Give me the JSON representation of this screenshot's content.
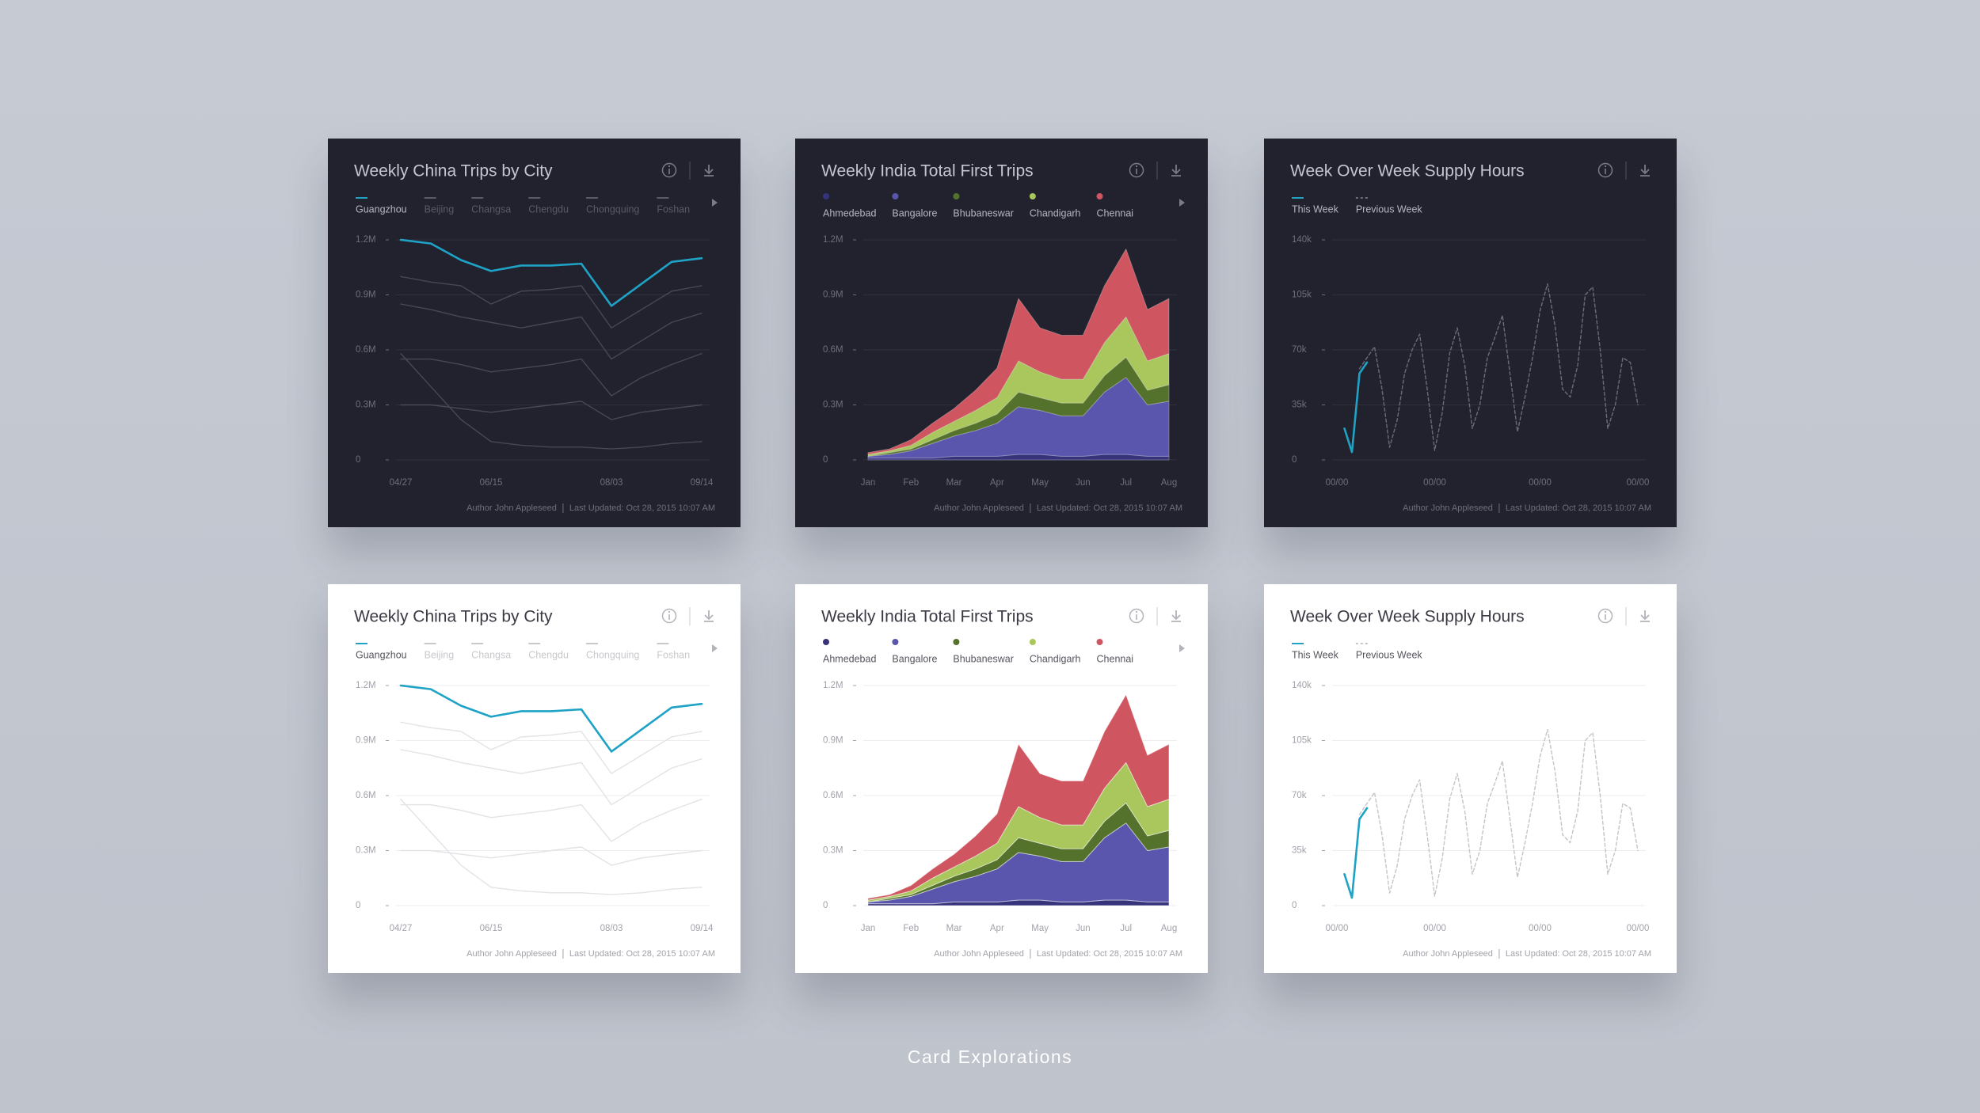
{
  "caption": "Card Explorations",
  "chart_data": [
    {
      "type": "line",
      "theme": "dark",
      "title": "Weekly China Trips by City",
      "categories": [
        "04/27",
        null,
        null,
        "06/15",
        null,
        null,
        null,
        "08/03",
        null,
        null,
        "09/14"
      ],
      "ylim": [
        0,
        1200000
      ],
      "yticks": [
        0,
        {
          "value": 300000,
          "label": "0.3M"
        },
        {
          "value": 600000,
          "label": "0.6M"
        },
        {
          "value": 900000,
          "label": "0.9M"
        },
        {
          "value": 1200000,
          "label": "1.2M"
        }
      ],
      "grid": true,
      "series": [
        {
          "name": "Guangzhou",
          "color": "#1ea3c6",
          "values": [
            1200000,
            1180000,
            1090000,
            1030000,
            1060000,
            1060000,
            1070000,
            840000,
            960000,
            1080000,
            1100000
          ]
        },
        {
          "name": "Beijing",
          "color": "#474855",
          "values": [
            1000000,
            970000,
            950000,
            850000,
            920000,
            930000,
            950000,
            720000,
            820000,
            920000,
            950000
          ]
        },
        {
          "name": "Changsa",
          "color": "#474855",
          "values": [
            850000,
            820000,
            780000,
            750000,
            720000,
            750000,
            780000,
            550000,
            650000,
            750000,
            800000
          ]
        },
        {
          "name": "Chengdu",
          "color": "#474855",
          "values": [
            580000,
            400000,
            220000,
            100000,
            80000,
            70000,
            70000,
            60000,
            70000,
            90000,
            100000
          ]
        },
        {
          "name": "Chongquing",
          "color": "#474855",
          "values": [
            550000,
            550000,
            520000,
            480000,
            500000,
            520000,
            550000,
            350000,
            450000,
            520000,
            580000
          ]
        },
        {
          "name": "Foshan",
          "color": "#474855",
          "values": [
            300000,
            300000,
            280000,
            260000,
            280000,
            300000,
            320000,
            220000,
            260000,
            280000,
            300000
          ]
        }
      ],
      "footer_author": "Author John Appleseed",
      "footer_updated": "Last Updated: Oct 28, 2015 10:07 AM"
    },
    {
      "type": "stacked-area",
      "theme": "dark",
      "title": "Weekly India Total First Trips",
      "categories": [
        "Jan",
        null,
        "Feb",
        null,
        "Mar",
        null,
        "Apr",
        null,
        "May",
        null,
        "Jun",
        null,
        "Jul",
        null,
        "Aug"
      ],
      "ylim": [
        0,
        1200000
      ],
      "yticks": [
        0,
        {
          "value": 300000,
          "label": "0.3M"
        },
        {
          "value": 600000,
          "label": "0.6M"
        },
        {
          "value": 900000,
          "label": "0.9M"
        },
        {
          "value": 1200000,
          "label": "1.2M"
        }
      ],
      "grid": true,
      "series": [
        {
          "name": "Ahmedebad",
          "color": "#37337a",
          "values": [
            10000,
            10000,
            10000,
            10000,
            20000,
            20000,
            20000,
            30000,
            30000,
            20000,
            20000,
            30000,
            30000,
            20000,
            20000
          ]
        },
        {
          "name": "Bangalore",
          "color": "#5a56ad",
          "values": [
            10000,
            20000,
            40000,
            80000,
            110000,
            140000,
            180000,
            260000,
            240000,
            220000,
            220000,
            340000,
            420000,
            280000,
            300000
          ]
        },
        {
          "name": "Bhubaneswar",
          "color": "#55722c",
          "values": [
            0,
            10000,
            10000,
            20000,
            30000,
            40000,
            50000,
            80000,
            70000,
            70000,
            70000,
            90000,
            110000,
            80000,
            90000
          ]
        },
        {
          "name": "Chandigarh",
          "color": "#a9c75c",
          "values": [
            10000,
            10000,
            20000,
            40000,
            50000,
            70000,
            90000,
            170000,
            140000,
            130000,
            130000,
            180000,
            220000,
            160000,
            170000
          ]
        },
        {
          "name": "Chennai",
          "color": "#cf5560",
          "values": [
            10000,
            10000,
            30000,
            50000,
            70000,
            110000,
            160000,
            340000,
            240000,
            240000,
            240000,
            310000,
            370000,
            280000,
            300000
          ]
        }
      ],
      "footer_author": "Author John Appleseed",
      "footer_updated": "Last Updated: Oct 28, 2015 10:07 AM"
    },
    {
      "type": "line",
      "theme": "dark",
      "title": "Week Over Week Supply Hours",
      "categories": [
        "00/00",
        null,
        null,
        null,
        null,
        null,
        null,
        null,
        null,
        null,
        null,
        null,
        null,
        "00/00",
        null,
        null,
        null,
        null,
        null,
        null,
        null,
        null,
        null,
        null,
        null,
        null,
        null,
        "00/00",
        null,
        null,
        null,
        null,
        null,
        null,
        null,
        null,
        null,
        null,
        null,
        null,
        "00/00"
      ],
      "ylim": [
        0,
        140000
      ],
      "yticks": [
        0,
        {
          "value": 35000,
          "label": "35k"
        },
        {
          "value": 70000,
          "label": "70k"
        },
        {
          "value": 105000,
          "label": "105k"
        },
        {
          "value": 140000,
          "label": "140k"
        }
      ],
      "grid": true,
      "series": [
        {
          "name": "This Week",
          "color": "#1ea3c6",
          "values": [
            null,
            20000,
            5000,
            55000,
            62000,
            null,
            null,
            null,
            null,
            null,
            null,
            null,
            null,
            null,
            null,
            null,
            null,
            null,
            null,
            null,
            null,
            null,
            null,
            null,
            null,
            null,
            null,
            null,
            null,
            null,
            null,
            null,
            null,
            null,
            null,
            null,
            null,
            null,
            null,
            null,
            null
          ]
        },
        {
          "name": "Previous Week",
          "color": "#6b6c78",
          "dashed": true,
          "values": [
            null,
            null,
            null,
            58000,
            65000,
            72000,
            45000,
            8000,
            25000,
            55000,
            70000,
            80000,
            45000,
            6000,
            30000,
            68000,
            84000,
            60000,
            20000,
            35000,
            65000,
            78000,
            92000,
            55000,
            18000,
            40000,
            65000,
            95000,
            112000,
            85000,
            45000,
            40000,
            60000,
            105000,
            110000,
            70000,
            20000,
            35000,
            65000,
            62000,
            35000
          ]
        }
      ],
      "footer_author": "Author John Appleseed",
      "footer_updated": "Last Updated: Oct 28, 2015 10:07 AM"
    },
    {
      "type": "line",
      "theme": "light",
      "title": "Weekly China Trips by City",
      "categories": [
        "04/27",
        null,
        null,
        "06/15",
        null,
        null,
        null,
        "08/03",
        null,
        null,
        "09/14"
      ],
      "ylim": [
        0,
        1200000
      ],
      "yticks": [
        0,
        {
          "value": 300000,
          "label": "0.3M"
        },
        {
          "value": 600000,
          "label": "0.6M"
        },
        {
          "value": 900000,
          "label": "0.9M"
        },
        {
          "value": 1200000,
          "label": "1.2M"
        }
      ],
      "grid": true,
      "series": [
        {
          "name": "Guangzhou",
          "color": "#1ea3c6",
          "values": [
            1200000,
            1180000,
            1090000,
            1030000,
            1060000,
            1060000,
            1070000,
            840000,
            960000,
            1080000,
            1100000
          ]
        },
        {
          "name": "Beijing",
          "color": "#e3e3e7",
          "values": [
            1000000,
            970000,
            950000,
            850000,
            920000,
            930000,
            950000,
            720000,
            820000,
            920000,
            950000
          ]
        },
        {
          "name": "Changsa",
          "color": "#e3e3e7",
          "values": [
            850000,
            820000,
            780000,
            750000,
            720000,
            750000,
            780000,
            550000,
            650000,
            750000,
            800000
          ]
        },
        {
          "name": "Chengdu",
          "color": "#e3e3e7",
          "values": [
            580000,
            400000,
            220000,
            100000,
            80000,
            70000,
            70000,
            60000,
            70000,
            90000,
            100000
          ]
        },
        {
          "name": "Chongquing",
          "color": "#e3e3e7",
          "values": [
            550000,
            550000,
            520000,
            480000,
            500000,
            520000,
            550000,
            350000,
            450000,
            520000,
            580000
          ]
        },
        {
          "name": "Foshan",
          "color": "#e3e3e7",
          "values": [
            300000,
            300000,
            280000,
            260000,
            280000,
            300000,
            320000,
            220000,
            260000,
            280000,
            300000
          ]
        }
      ],
      "footer_author": "Author John Appleseed",
      "footer_updated": "Last Updated: Oct 28, 2015 10:07 AM"
    },
    {
      "type": "stacked-area",
      "theme": "light",
      "title": "Weekly India Total First Trips",
      "categories": [
        "Jan",
        null,
        "Feb",
        null,
        "Mar",
        null,
        "Apr",
        null,
        "May",
        null,
        "Jun",
        null,
        "Jul",
        null,
        "Aug"
      ],
      "ylim": [
        0,
        1200000
      ],
      "yticks": [
        0,
        {
          "value": 300000,
          "label": "0.3M"
        },
        {
          "value": 600000,
          "label": "0.6M"
        },
        {
          "value": 900000,
          "label": "0.9M"
        },
        {
          "value": 1200000,
          "label": "1.2M"
        }
      ],
      "grid": true,
      "series": [
        {
          "name": "Ahmedebad",
          "color": "#37337a",
          "values": [
            10000,
            10000,
            10000,
            10000,
            20000,
            20000,
            20000,
            30000,
            30000,
            20000,
            20000,
            30000,
            30000,
            20000,
            20000
          ]
        },
        {
          "name": "Bangalore",
          "color": "#5a56ad",
          "values": [
            10000,
            20000,
            40000,
            80000,
            110000,
            140000,
            180000,
            260000,
            240000,
            220000,
            220000,
            340000,
            420000,
            280000,
            300000
          ]
        },
        {
          "name": "Bhubaneswar",
          "color": "#55722c",
          "values": [
            0,
            10000,
            10000,
            20000,
            30000,
            40000,
            50000,
            80000,
            70000,
            70000,
            70000,
            90000,
            110000,
            80000,
            90000
          ]
        },
        {
          "name": "Chandigarh",
          "color": "#a9c75c",
          "values": [
            10000,
            10000,
            20000,
            40000,
            50000,
            70000,
            90000,
            170000,
            140000,
            130000,
            130000,
            180000,
            220000,
            160000,
            170000
          ]
        },
        {
          "name": "Chennai",
          "color": "#cf5560",
          "values": [
            10000,
            10000,
            30000,
            50000,
            70000,
            110000,
            160000,
            340000,
            240000,
            240000,
            240000,
            310000,
            370000,
            280000,
            300000
          ]
        }
      ],
      "footer_author": "Author John Appleseed",
      "footer_updated": "Last Updated: Oct 28, 2015 10:07 AM"
    },
    {
      "type": "line",
      "theme": "light",
      "title": "Week Over Week Supply Hours",
      "categories": [
        "00/00",
        null,
        null,
        null,
        null,
        null,
        null,
        null,
        null,
        null,
        null,
        null,
        null,
        "00/00",
        null,
        null,
        null,
        null,
        null,
        null,
        null,
        null,
        null,
        null,
        null,
        null,
        null,
        "00/00",
        null,
        null,
        null,
        null,
        null,
        null,
        null,
        null,
        null,
        null,
        null,
        null,
        "00/00"
      ],
      "ylim": [
        0,
        140000
      ],
      "yticks": [
        0,
        {
          "value": 35000,
          "label": "35k"
        },
        {
          "value": 70000,
          "label": "70k"
        },
        {
          "value": 105000,
          "label": "105k"
        },
        {
          "value": 140000,
          "label": "140k"
        }
      ],
      "grid": true,
      "series": [
        {
          "name": "This Week",
          "color": "#1ea3c6",
          "values": [
            null,
            20000,
            5000,
            55000,
            62000,
            null,
            null,
            null,
            null,
            null,
            null,
            null,
            null,
            null,
            null,
            null,
            null,
            null,
            null,
            null,
            null,
            null,
            null,
            null,
            null,
            null,
            null,
            null,
            null,
            null,
            null,
            null,
            null,
            null,
            null,
            null,
            null,
            null,
            null,
            null,
            null
          ]
        },
        {
          "name": "Previous Week",
          "color": "#c4c4c9",
          "dashed": true,
          "values": [
            null,
            null,
            null,
            58000,
            65000,
            72000,
            45000,
            8000,
            25000,
            55000,
            70000,
            80000,
            45000,
            6000,
            30000,
            68000,
            84000,
            60000,
            20000,
            35000,
            65000,
            78000,
            92000,
            55000,
            18000,
            40000,
            65000,
            95000,
            112000,
            85000,
            45000,
            40000,
            60000,
            105000,
            110000,
            70000,
            20000,
            35000,
            65000,
            62000,
            35000
          ]
        }
      ],
      "footer_author": "Author John Appleseed",
      "footer_updated": "Last Updated: Oct 28, 2015 10:07 AM"
    }
  ]
}
